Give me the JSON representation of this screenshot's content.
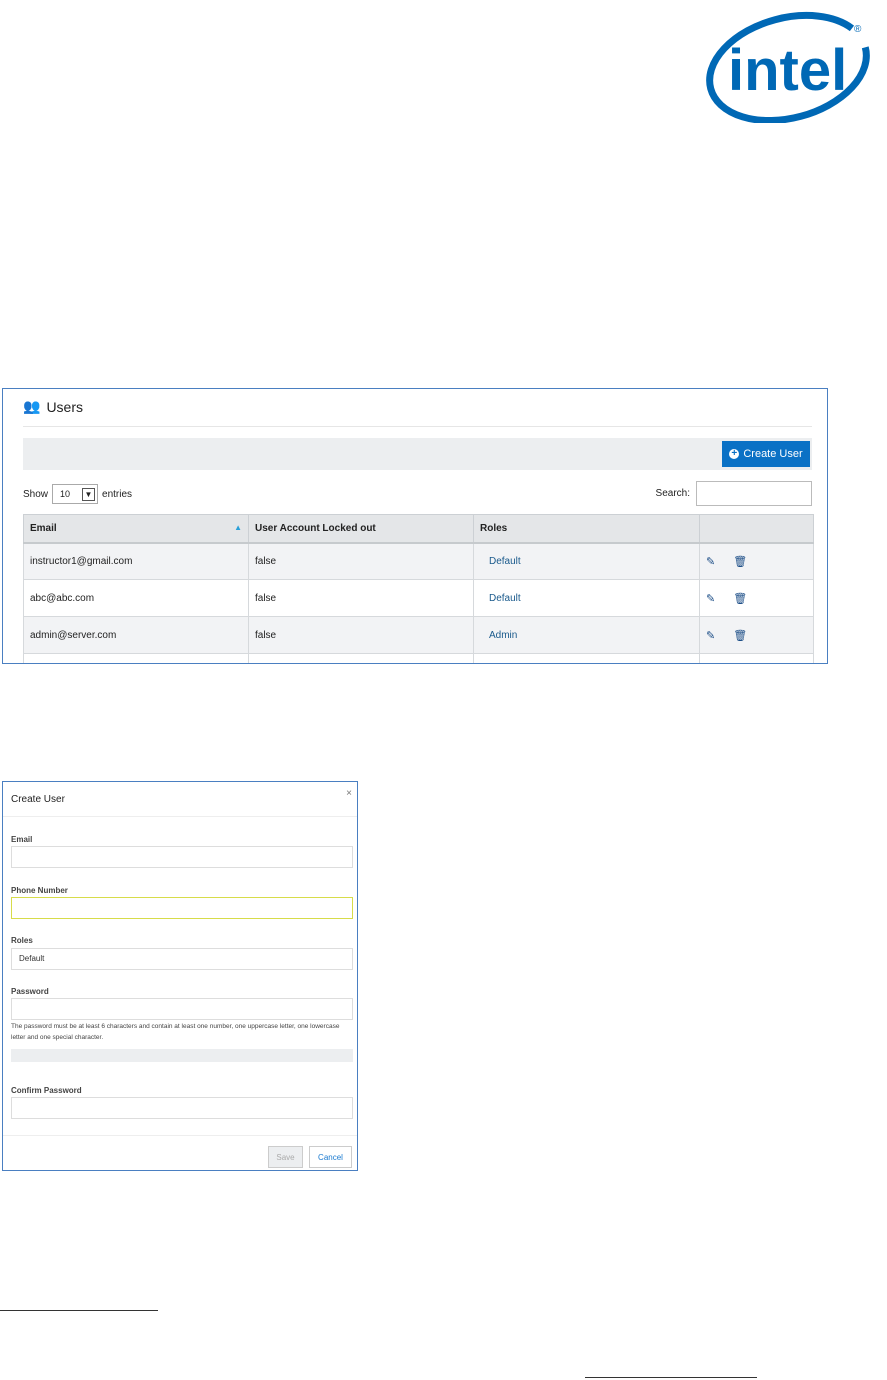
{
  "logo": {
    "text": "intel",
    "color": "#0068b5"
  },
  "users": {
    "title": "Users",
    "create_button": "Create User",
    "show_label": "Show",
    "entries_value": "10",
    "entries_label": "entries",
    "search_label": "Search:",
    "search_value": "",
    "columns": [
      "Email",
      "User Account Locked out",
      "Roles",
      ""
    ],
    "rows": [
      {
        "email": "instructor1@gmail.com",
        "locked": "false",
        "role": "Default"
      },
      {
        "email": "abc@abc.com",
        "locked": "false",
        "role": "Default"
      },
      {
        "email": "admin@server.com",
        "locked": "false",
        "role": "Admin"
      }
    ],
    "accent": "#0a71c5"
  },
  "modal": {
    "title": "Create User",
    "close": "×",
    "email_label": "Email",
    "phone_label": "Phone Number",
    "roles_label": "Roles",
    "roles_value": "Default",
    "password_label": "Password",
    "password_help": "The password must be at least 6 characters and contain at least one number, one uppercase letter, one lowercase letter and one special character.",
    "confirm_label": "Confirm Password",
    "save": "Save",
    "cancel": "Cancel"
  }
}
